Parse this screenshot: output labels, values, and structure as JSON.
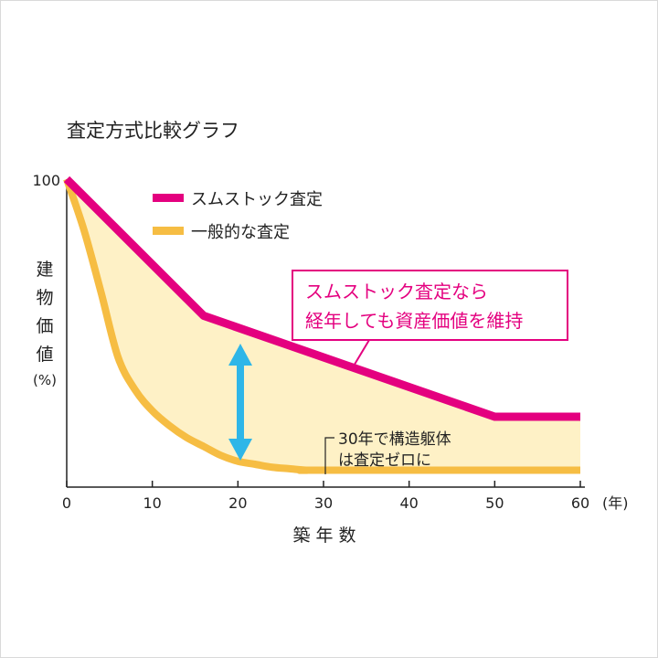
{
  "chart_data": {
    "type": "line",
    "title": "査定方式比較グラフ",
    "xlabel": "築年数",
    "x_unit": "(年)",
    "ylabel": "建物価値",
    "y_unit": "(%)",
    "xlim": [
      0,
      60
    ],
    "ylim": [
      0,
      100
    ],
    "x_ticks": [
      "0",
      "10",
      "20",
      "30",
      "40",
      "50",
      "60"
    ],
    "y_tick_top": "100",
    "legend": "top-left",
    "grid": false,
    "colors": {
      "smustock": "#e4007f",
      "general": "#f6bd43",
      "fill": "#fef1c6",
      "arrow": "#2eb6e8"
    },
    "series": [
      {
        "name": "スムストック査定",
        "x": [
          0,
          16,
          50,
          60
        ],
        "y": [
          100,
          54,
          20,
          20
        ]
      },
      {
        "name": "一般的な査定",
        "x": [
          0,
          2,
          4,
          6,
          8,
          10,
          12,
          14,
          16,
          18,
          20,
          22,
          24,
          26,
          28,
          30,
          60
        ],
        "y": [
          100,
          83,
          62,
          40,
          29,
          22,
          17,
          13,
          10,
          7,
          5,
          4,
          3,
          2.5,
          2,
          2,
          2
        ]
      }
    ],
    "callout": {
      "lines": [
        "スムストック査定なら",
        "経年しても資産価値を維持"
      ]
    },
    "annotation": {
      "lines": [
        "30年で構造躯体",
        "は査定ゼロに"
      ]
    }
  }
}
